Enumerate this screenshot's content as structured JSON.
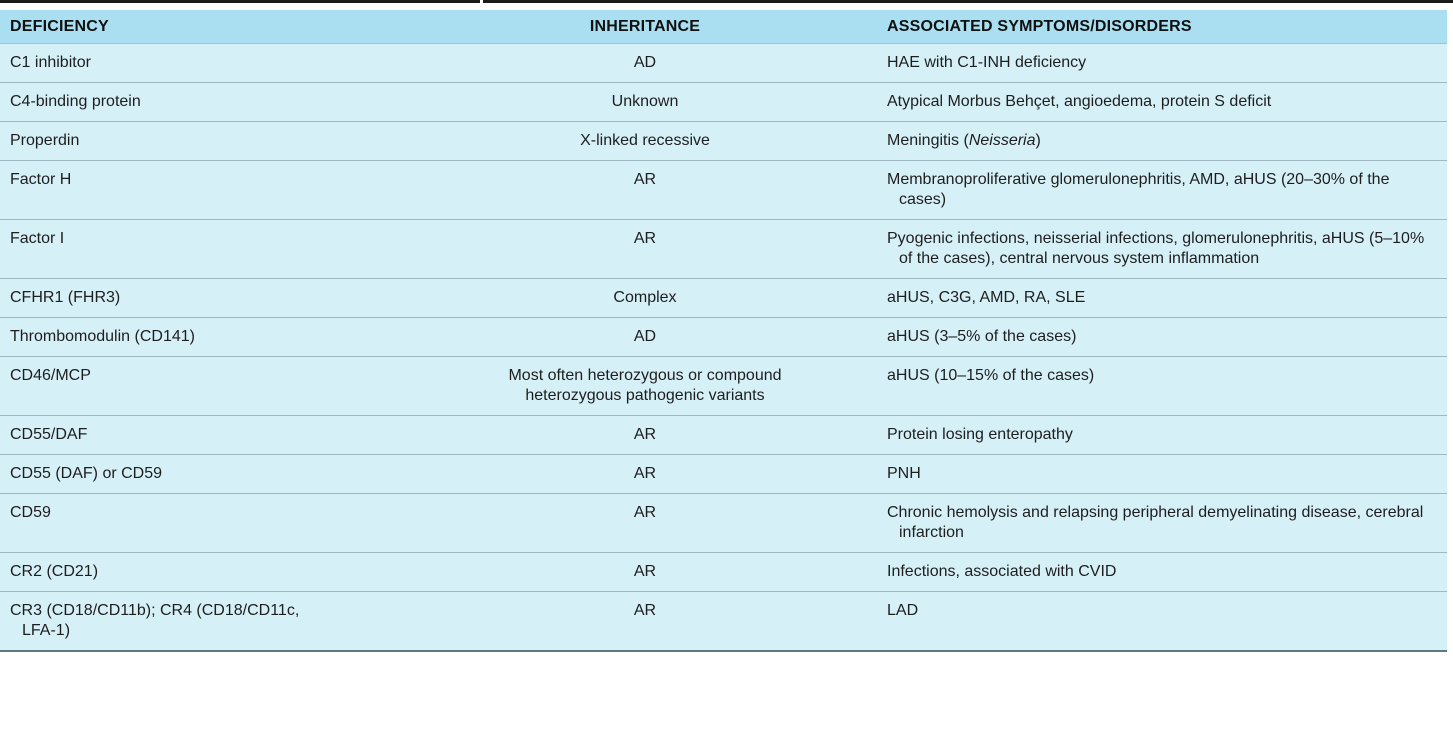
{
  "table": {
    "headers": {
      "deficiency": "DEFICIENCY",
      "inheritance": "INHERITANCE",
      "symptoms": "ASSOCIATED SYMPTOMS/DISORDERS"
    },
    "rows": [
      {
        "deficiency": "C1 inhibitor",
        "inheritance": "AD",
        "symptoms": "HAE with C1-INH deficiency"
      },
      {
        "deficiency": "C4-binding protein",
        "inheritance": "Unknown",
        "symptoms": "Atypical Morbus Behçet, angioedema, protein S deficit"
      },
      {
        "deficiency": "Properdin",
        "inheritance": "X-linked recessive",
        "symptoms_pre": "Meningitis (",
        "symptoms_italic": "Neisseria",
        "symptoms_post": ")"
      },
      {
        "deficiency": "Factor H",
        "inheritance": "AR",
        "symptoms": "Membranoproliferative glomerulonephritis, AMD, aHUS (20–30% of the cases)"
      },
      {
        "deficiency": "Factor I",
        "inheritance": "AR",
        "symptoms": "Pyogenic infections, neisserial infections, glomerulonephritis, aHUS (5–10% of the cases), central nervous system inflammation"
      },
      {
        "deficiency": "CFHR1 (FHR3)",
        "inheritance": "Complex",
        "symptoms": "aHUS, C3G, AMD, RA, SLE"
      },
      {
        "deficiency": "Thrombomodulin (CD141)",
        "inheritance": "AD",
        "symptoms": "aHUS (3–5% of the cases)"
      },
      {
        "deficiency": "CD46/MCP",
        "inheritance_line1": "Most often heterozygous or compound",
        "inheritance_line2": "heterozygous pathogenic variants",
        "symptoms": "aHUS (10–15% of the cases)"
      },
      {
        "deficiency": "CD55/DAF",
        "inheritance": "AR",
        "symptoms": "Protein losing enteropathy"
      },
      {
        "deficiency": "CD55 (DAF) or CD59",
        "inheritance": "AR",
        "symptoms": "PNH"
      },
      {
        "deficiency": "CD59",
        "inheritance": "AR",
        "symptoms": "Chronic hemolysis and relapsing peripheral demyelinating disease, cerebral infarction"
      },
      {
        "deficiency": "CR2 (CD21)",
        "inheritance": "AR",
        "symptoms": "Infections, associated with CVID"
      },
      {
        "deficiency": "CR3 (CD18/CD11b); CR4 (CD18/CD11c, LFA-1)",
        "inheritance": "AR",
        "symptoms": "LAD"
      }
    ]
  }
}
